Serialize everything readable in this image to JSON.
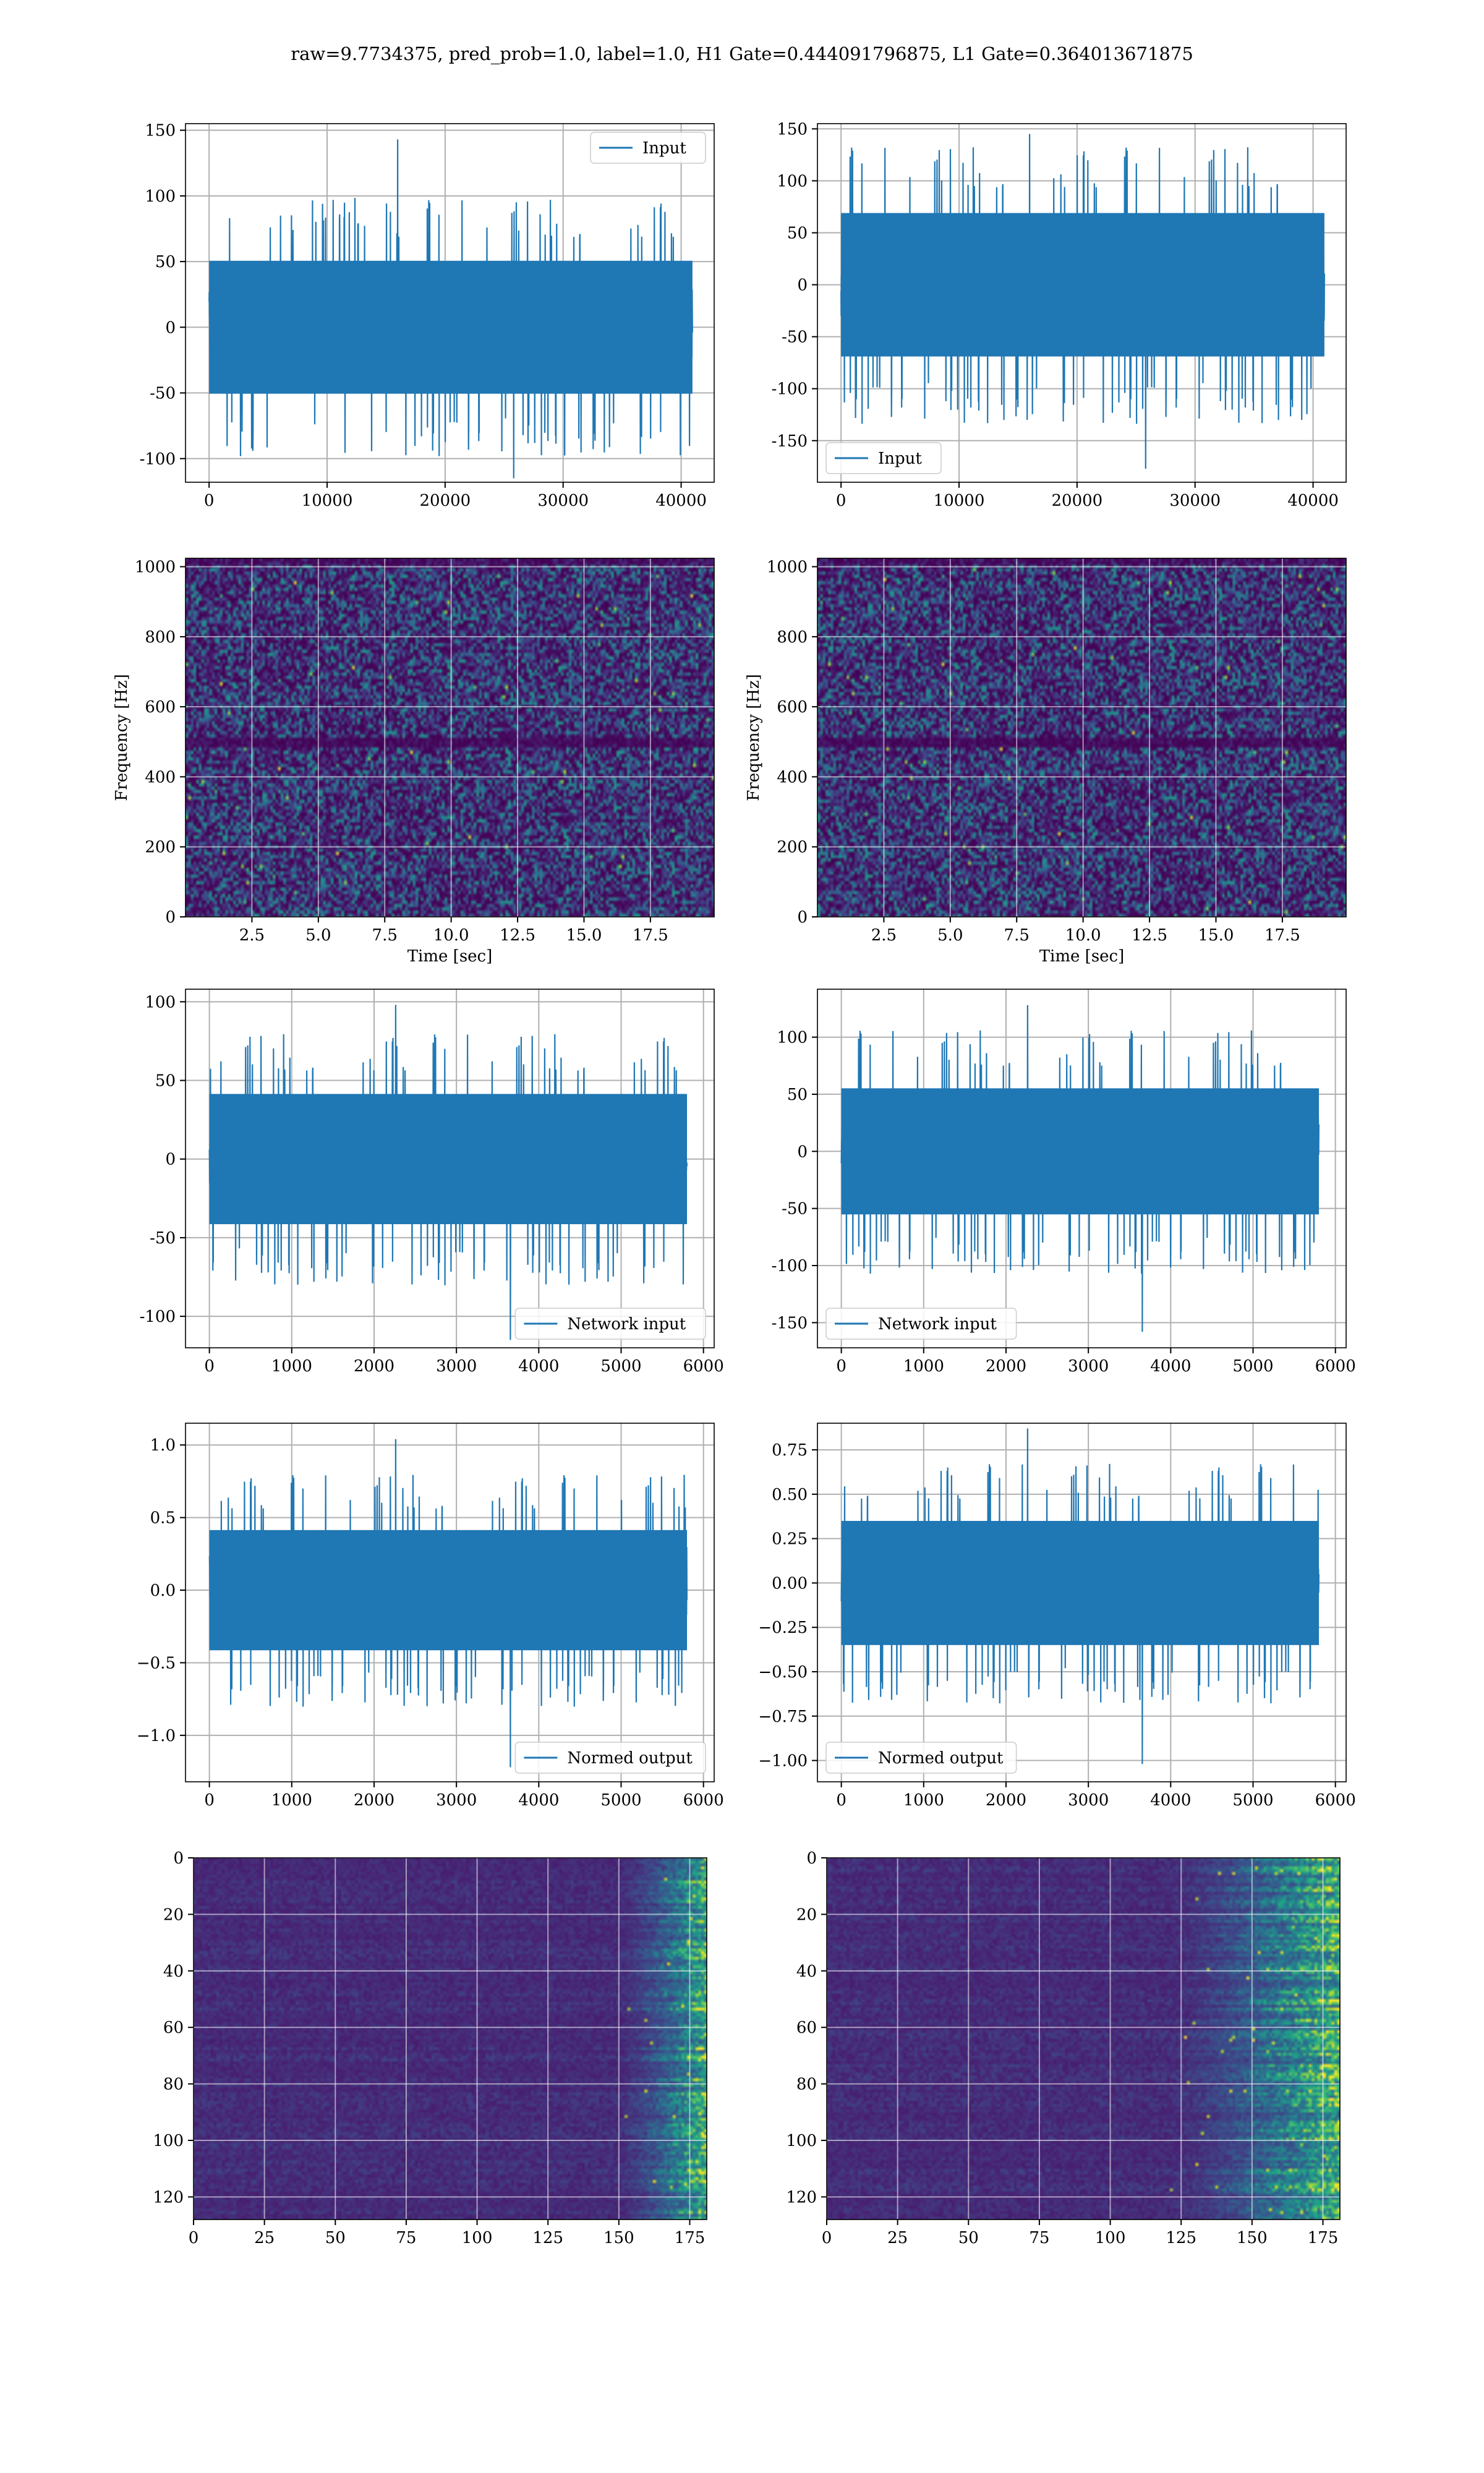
{
  "suptitle": "raw=9.7734375, pred_prob=1.0, label=1.0, H1 Gate=0.444091796875, L1 Gate=0.364013671875",
  "colors": {
    "line": "#1f77b4",
    "viridis_dark": "#440154",
    "grid": "#b0b0b0"
  },
  "chart_data": [
    {
      "id": "h1-input",
      "type": "line",
      "legend": "Input",
      "legend_loc": "upper right",
      "xlim": [
        -2000,
        42800
      ],
      "ylim": [
        -118,
        155
      ],
      "xticks": [
        0,
        10000,
        20000,
        30000,
        40000
      ],
      "yticks": [
        -100,
        -50,
        0,
        50,
        100,
        150
      ],
      "n_points": 40960,
      "band": [
        -55,
        55
      ],
      "extremes": {
        "max": 143,
        "min": -115
      },
      "grid": true
    },
    {
      "id": "l1-input",
      "type": "line",
      "legend": "Input",
      "legend_loc": "lower left",
      "xlim": [
        -2000,
        42800
      ],
      "ylim": [
        -190,
        155
      ],
      "xticks": [
        0,
        10000,
        20000,
        30000,
        40000
      ],
      "yticks": [
        -150,
        -100,
        -50,
        0,
        50,
        100,
        150
      ],
      "n_points": 40960,
      "band": [
        -75,
        75
      ],
      "extremes": {
        "max": 145,
        "min": -177
      },
      "grid": true
    },
    {
      "id": "h1-spectrogram",
      "type": "heatmap",
      "colormap": "viridis",
      "xlabel": "Time [sec]",
      "ylabel": "Frequency [Hz]",
      "xlim": [
        0,
        19.9
      ],
      "ylim": [
        0,
        1024
      ],
      "xticks": [
        "2.5",
        "5.0",
        "7.5",
        "10.0",
        "12.5",
        "15.0",
        "17.5"
      ],
      "xtick_values": [
        2.5,
        5,
        7.5,
        10,
        12.5,
        15,
        17.5
      ],
      "yticks": [
        0,
        200,
        400,
        600,
        800,
        1000
      ],
      "grid": true
    },
    {
      "id": "l1-spectrogram",
      "type": "heatmap",
      "colormap": "viridis",
      "xlabel": "Time [sec]",
      "ylabel": "Frequency [Hz]",
      "xlim": [
        0,
        19.9
      ],
      "ylim": [
        0,
        1024
      ],
      "xticks": [
        "2.5",
        "5.0",
        "7.5",
        "10.0",
        "12.5",
        "15.0",
        "17.5"
      ],
      "xtick_values": [
        2.5,
        5,
        7.5,
        10,
        12.5,
        15,
        17.5
      ],
      "yticks": [
        0,
        200,
        400,
        600,
        800,
        1000
      ],
      "grid": true
    },
    {
      "id": "h1-network-input",
      "type": "line",
      "legend": "Network input",
      "legend_loc": "lower right",
      "xlim": [
        -290,
        6130
      ],
      "ylim": [
        -120,
        108
      ],
      "xticks": [
        0,
        1000,
        2000,
        3000,
        4000,
        5000,
        6000
      ],
      "yticks": [
        -100,
        -50,
        0,
        50,
        100
      ],
      "n_points": 5800,
      "band": [
        -45,
        45
      ],
      "extremes": {
        "max": 98,
        "min": -115
      },
      "grid": true
    },
    {
      "id": "l1-network-input",
      "type": "line",
      "legend": "Network input",
      "legend_loc": "lower left",
      "xlim": [
        -290,
        6130
      ],
      "ylim": [
        -172,
        142
      ],
      "xticks": [
        0,
        1000,
        2000,
        3000,
        4000,
        5000,
        6000
      ],
      "yticks": [
        -150,
        -100,
        -50,
        0,
        50,
        100
      ],
      "n_points": 5800,
      "band": [
        -60,
        60
      ],
      "extremes": {
        "max": 128,
        "min": -158
      },
      "grid": true
    },
    {
      "id": "h1-normed-output",
      "type": "line",
      "legend": "Normed output",
      "legend_loc": "lower right",
      "xlim": [
        -290,
        6130
      ],
      "ylim": [
        -1.32,
        1.15
      ],
      "xticks": [
        0,
        1000,
        2000,
        3000,
        4000,
        5000,
        6000
      ],
      "yticks": [
        "−1.0",
        "−0.5",
        "0.0",
        "0.5",
        "1.0"
      ],
      "ytick_values": [
        -1,
        -0.5,
        0,
        0.5,
        1
      ],
      "n_points": 5800,
      "band": [
        -0.45,
        0.45
      ],
      "extremes": {
        "max": 1.04,
        "min": -1.22
      },
      "grid": true
    },
    {
      "id": "l1-normed-output",
      "type": "line",
      "legend": "Normed output",
      "legend_loc": "lower left",
      "xlim": [
        -290,
        6130
      ],
      "ylim": [
        -1.12,
        0.9
      ],
      "xticks": [
        0,
        1000,
        2000,
        3000,
        4000,
        5000,
        6000
      ],
      "yticks": [
        "−1.00",
        "−0.75",
        "−0.50",
        "−0.25",
        "0.00",
        "0.25",
        "0.50",
        "0.75"
      ],
      "ytick_values": [
        -1,
        -0.75,
        -0.5,
        -0.25,
        0,
        0.25,
        0.5,
        0.75
      ],
      "n_points": 5800,
      "band": [
        -0.38,
        0.38
      ],
      "extremes": {
        "max": 0.87,
        "min": -1.02
      },
      "grid": true
    },
    {
      "id": "h1-feature-map",
      "type": "heatmap",
      "colormap": "viridis",
      "xlim": [
        0,
        181
      ],
      "ylim": [
        128,
        0
      ],
      "xticks": [
        0,
        25,
        50,
        75,
        100,
        125,
        150,
        175
      ],
      "yticks": [
        0,
        20,
        40,
        60,
        80,
        100,
        120
      ],
      "rows": 128,
      "cols": 181,
      "grid": true
    },
    {
      "id": "l1-feature-map",
      "type": "heatmap",
      "colormap": "viridis",
      "xlim": [
        0,
        181
      ],
      "ylim": [
        128,
        0
      ],
      "xticks": [
        0,
        25,
        50,
        75,
        100,
        125,
        150,
        175
      ],
      "yticks": [
        0,
        20,
        40,
        60,
        80,
        100,
        120
      ],
      "rows": 128,
      "cols": 181,
      "grid": true
    }
  ]
}
